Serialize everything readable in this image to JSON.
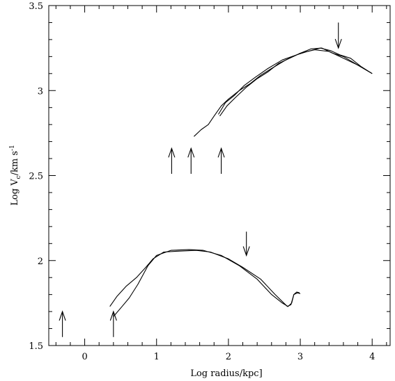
{
  "chart_data": {
    "type": "line",
    "xlabel": "Log radius/kpc]",
    "ylabel_parts": {
      "main": "Log V",
      "sub": "c",
      "mid": "/km s",
      "sup": "-1"
    },
    "xlim": [
      -0.5,
      4.25
    ],
    "ylim": [
      1.5,
      3.5
    ],
    "x_ticks": [
      0,
      1,
      2,
      3,
      4
    ],
    "y_ticks": [
      1.5,
      2,
      2.5,
      3,
      3.5
    ],
    "y_tick_labels": [
      "1.5",
      "2",
      "2.5",
      "3",
      "3.5"
    ],
    "grid": false,
    "series": [
      {
        "points": [
          [
            1.52,
            2.73
          ],
          [
            1.62,
            2.77
          ],
          [
            1.72,
            2.8
          ],
          [
            1.8,
            2.85
          ],
          [
            1.9,
            2.91
          ],
          [
            2.0,
            2.95
          ],
          [
            2.15,
            3.0
          ],
          [
            2.3,
            3.04
          ],
          [
            2.45,
            3.09
          ],
          [
            2.6,
            3.13
          ],
          [
            2.8,
            3.18
          ],
          [
            3.0,
            3.22
          ],
          [
            3.2,
            3.24
          ],
          [
            3.4,
            3.23
          ],
          [
            3.6,
            3.19
          ],
          [
            3.8,
            3.15
          ],
          [
            4.0,
            3.1
          ]
        ]
      },
      {
        "points": [
          [
            1.88,
            2.85
          ],
          [
            1.98,
            2.91
          ],
          [
            2.1,
            2.96
          ],
          [
            2.25,
            3.02
          ],
          [
            2.4,
            3.07
          ],
          [
            2.55,
            3.11
          ],
          [
            2.7,
            3.16
          ],
          [
            2.85,
            3.19
          ],
          [
            3.0,
            3.22
          ],
          [
            3.15,
            3.245
          ],
          [
            3.3,
            3.25
          ],
          [
            3.45,
            3.22
          ],
          [
            3.6,
            3.2
          ],
          [
            3.8,
            3.15
          ],
          [
            4.0,
            3.1
          ]
        ]
      },
      {
        "points": [
          [
            1.86,
            2.86
          ],
          [
            1.96,
            2.93
          ],
          [
            2.08,
            2.97
          ],
          [
            2.22,
            3.03
          ],
          [
            2.38,
            3.08
          ],
          [
            2.55,
            3.13
          ],
          [
            2.75,
            3.18
          ],
          [
            2.95,
            3.21
          ],
          [
            3.1,
            3.23
          ],
          [
            3.28,
            3.25
          ],
          [
            3.42,
            3.235
          ],
          [
            3.55,
            3.21
          ],
          [
            3.7,
            3.19
          ],
          [
            3.85,
            3.14
          ],
          [
            4.0,
            3.1
          ]
        ]
      },
      {
        "points": [
          [
            0.35,
            1.73
          ],
          [
            0.45,
            1.79
          ],
          [
            0.58,
            1.85
          ],
          [
            0.72,
            1.9
          ],
          [
            0.85,
            1.96
          ],
          [
            0.95,
            2.01
          ],
          [
            1.1,
            2.05
          ],
          [
            1.3,
            2.055
          ],
          [
            1.55,
            2.06
          ],
          [
            1.75,
            2.05
          ],
          [
            2.0,
            2.01
          ],
          [
            2.2,
            1.96
          ],
          [
            2.45,
            1.89
          ],
          [
            2.65,
            1.8
          ],
          [
            2.82,
            1.73
          ],
          [
            2.87,
            1.74
          ],
          [
            2.91,
            1.8
          ],
          [
            2.95,
            1.815
          ],
          [
            2.99,
            1.81
          ]
        ]
      },
      {
        "points": [
          [
            0.4,
            1.67
          ],
          [
            0.52,
            1.73
          ],
          [
            0.62,
            1.78
          ],
          [
            0.74,
            1.86
          ],
          [
            0.88,
            1.97
          ],
          [
            1.0,
            2.03
          ],
          [
            1.2,
            2.06
          ],
          [
            1.45,
            2.065
          ],
          [
            1.65,
            2.06
          ],
          [
            1.9,
            2.03
          ],
          [
            2.15,
            1.97
          ],
          [
            2.4,
            1.89
          ],
          [
            2.6,
            1.8
          ],
          [
            2.75,
            1.75
          ],
          [
            2.83,
            1.73
          ],
          [
            2.88,
            1.75
          ],
          [
            2.91,
            1.8
          ],
          [
            2.96,
            1.81
          ],
          [
            3.0,
            1.805
          ]
        ]
      }
    ],
    "annotations": [
      {
        "type": "arrow-up",
        "x": 1.21,
        "y_tail": 2.51,
        "y_head": 2.66
      },
      {
        "type": "arrow-up",
        "x": 1.48,
        "y_tail": 2.51,
        "y_head": 2.66
      },
      {
        "type": "arrow-up",
        "x": 1.9,
        "y_tail": 2.51,
        "y_head": 2.66
      },
      {
        "type": "arrow-up",
        "x": -0.31,
        "y_tail": 1.55,
        "y_head": 1.7
      },
      {
        "type": "arrow-up",
        "x": 0.4,
        "y_tail": 1.55,
        "y_head": 1.7
      },
      {
        "type": "arrow-down",
        "x": 3.53,
        "y_tail": 3.4,
        "y_head": 3.25
      },
      {
        "type": "arrow-down",
        "x": 2.25,
        "y_tail": 2.17,
        "y_head": 2.03
      }
    ]
  }
}
